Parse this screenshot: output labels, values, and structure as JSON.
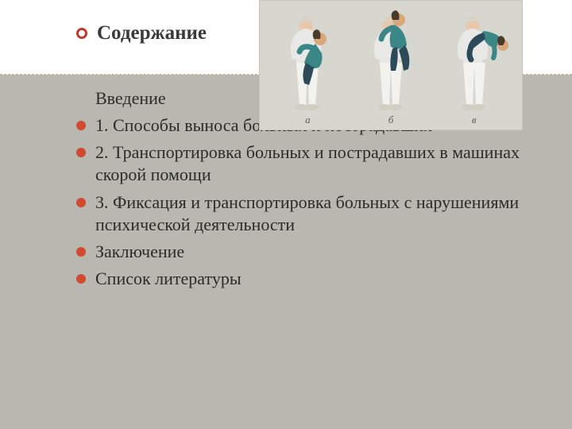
{
  "slide": {
    "background_header": "#ffffff",
    "background_body": "#b8b8b1",
    "divider_color": "#c9b89a",
    "title": {
      "text": "Содержание",
      "fontsize": 25,
      "color": "#3a3a3a",
      "bullet_color": "#c0392b"
    },
    "bullet_color": "#cf4a2f",
    "text_color": "#2b2b2b",
    "item_fontsize": 22,
    "items": [
      {
        "text": "Введение",
        "bullet": false
      },
      {
        "text": "1. Способы выноса больных и пострадавших",
        "bullet": true
      },
      {
        "text": "2. Транспортировка больных и пострадавших в машинах скорой помощи",
        "bullet": true
      },
      {
        "text": "3. Фиксация и транспортировка больных с нарушениями психической деятельности",
        "bullet": true
      },
      {
        "text": "Заключение",
        "bullet": true
      },
      {
        "text": "Список литературы",
        "bullet": true
      }
    ]
  },
  "illustration": {
    "background": "#d7d7d0",
    "figure_labels": [
      "а",
      "б",
      "в"
    ],
    "carrier_shirt": "#e8e8e6",
    "carrier_pants": "#f2f2ef",
    "carrier_skin": "#e8c8a8",
    "carrier_hair": "#d4d4cc",
    "victim_shirt": "#3b8686",
    "victim_pants": "#2b4a5a",
    "victim_skin": "#d9a87a",
    "victim_hair": "#4a3a2a"
  }
}
